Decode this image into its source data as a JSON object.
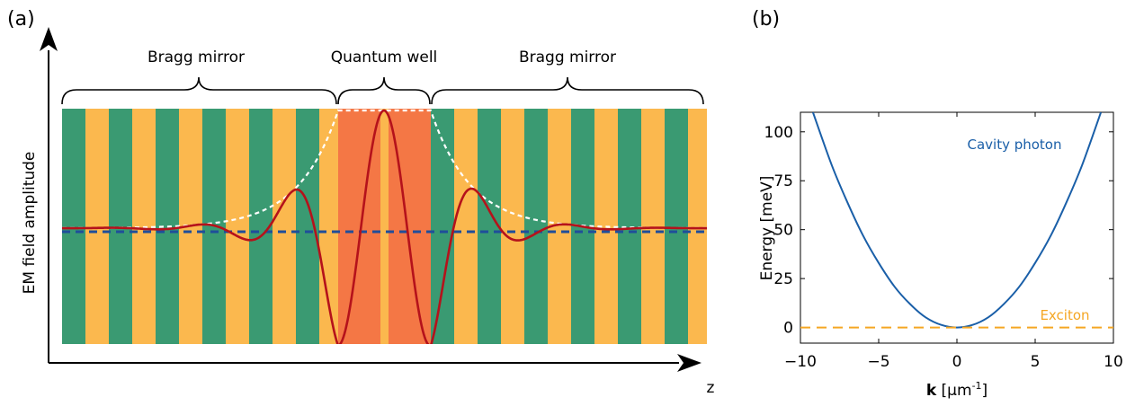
{
  "colors": {
    "green": "#3a9a72",
    "yellow": "#fbb84e",
    "quantum_well": "#f47745",
    "field_red": "#b5121b",
    "envelope_white": "#ffffff",
    "baseline_blue": "#1f4e9a",
    "photon_blue": "#1a5fa8",
    "exciton_orange": "#f5a623"
  },
  "panel_a": {
    "label": "(a)",
    "ylabel": "EM field amplitude",
    "xlabel": "z",
    "braces": [
      {
        "label": "Bragg mirror"
      },
      {
        "label": "Quantum well"
      },
      {
        "label": "Bragg mirror"
      }
    ]
  },
  "panel_b": {
    "label": "(b)",
    "curve_labels": {
      "photon": "Cavity photon",
      "exciton": "Exciton"
    }
  },
  "chart_data": {
    "type": "line",
    "title": "",
    "xlabel_bold": "k",
    "xlabel_rest": " [μm",
    "xlabel_sup": "-1",
    "xlabel_close": "]",
    "ylabel": "Energy [meV]",
    "xlim": [
      -10,
      10
    ],
    "ylim": [
      -8,
      110
    ],
    "xticks": [
      -10,
      -5,
      0,
      5,
      10
    ],
    "xtick_labels": [
      "−10",
      "−5",
      "0",
      "5",
      "10"
    ],
    "yticks": [
      0,
      25,
      50,
      75,
      100
    ],
    "ytick_labels": [
      "0",
      "25",
      "50",
      "75",
      "100"
    ],
    "series": [
      {
        "name": "Cavity photon",
        "style": "solid",
        "x": [
          -9.2,
          -8,
          -7,
          -6,
          -5,
          -4,
          -3,
          -2,
          -1,
          0,
          1,
          2,
          3,
          4,
          5,
          6,
          7,
          8,
          9.2
        ],
        "y": [
          110,
          83,
          64,
          47,
          33,
          21,
          12,
          5.2,
          1.3,
          0,
          1.3,
          5.2,
          12,
          21,
          33,
          47,
          64,
          83,
          110
        ]
      },
      {
        "name": "Exciton",
        "style": "dashed",
        "x": [
          -10,
          10
        ],
        "y": [
          0,
          0
        ]
      }
    ]
  }
}
